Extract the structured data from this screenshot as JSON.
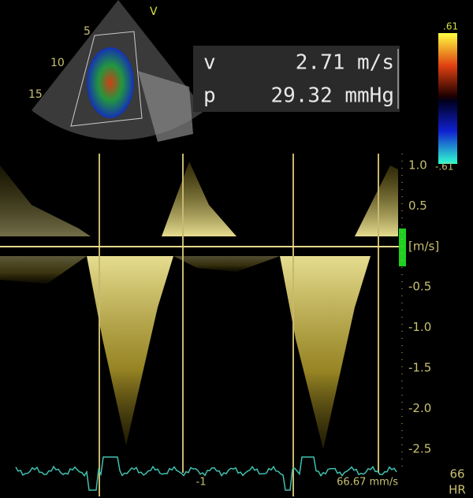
{
  "sector_view": {
    "marker": "V",
    "depth_labels": [
      "5",
      "10",
      "15"
    ]
  },
  "measurements": [
    {
      "label": "v",
      "value": "2.71 m/s"
    },
    {
      "label": "p",
      "value": "29.32 mmHg"
    }
  ],
  "color_bar": {
    "max": ".61",
    "min": "-.61"
  },
  "velocity_scale": {
    "labels": [
      "1.0",
      "0.5",
      "[m/s]",
      "-0.5",
      "-1.0",
      "-1.5",
      "-2.0",
      "-2.5"
    ]
  },
  "ecg": {
    "marker": "-1",
    "sweep": "66.67 mm/s"
  },
  "heart_rate": {
    "value": "66",
    "label": "HR"
  }
}
